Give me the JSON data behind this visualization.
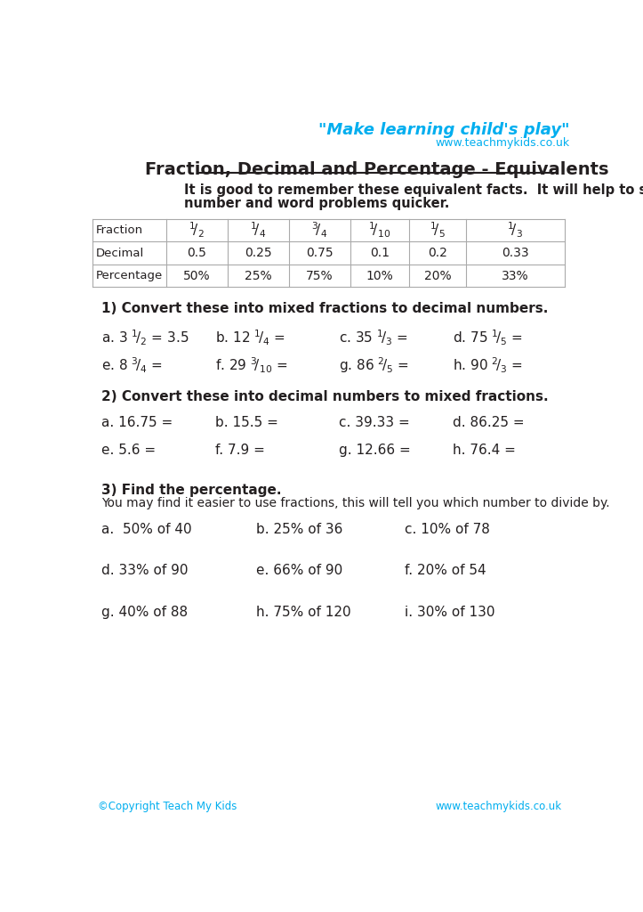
{
  "page_bg": "#ffffff",
  "title": "Fraction, Decimal and Percentage - Equivalents",
  "tagline": "\"Make learning child's play\"",
  "website": "www.teachmykids.co.uk",
  "intro_line1": "It is good to remember these equivalent facts.  It will help to solve some",
  "intro_line2": "number and word problems quicker.",
  "dec_vals": [
    "0.5",
    "0.25",
    "0.75",
    "0.1",
    "0.2",
    "0.33"
  ],
  "pct_vals": [
    "50%",
    "25%",
    "75%",
    "10%",
    "20%",
    "33%"
  ],
  "section1_title": "1) Convert these into mixed fractions to decimal numbers.",
  "section2_title": "2) Convert these into decimal numbers to mixed fractions.",
  "section3_title": "3) Find the percentage.",
  "section3_subtitle": "You may find it easier to use fractions, this will tell you which number to divide by.",
  "footer_left": "©Copyright Teach My Kids",
  "footer_right": "www.teachmykids.co.uk",
  "cyan_color": "#00aeef",
  "black_color": "#231f20",
  "table_line_color": "#aaaaaa",
  "s1r1": [
    [
      30,
      "a. 3 $^1\\!/_2$ = 3.5"
    ],
    [
      195,
      "b. 12 $^1\\!/_4$ ="
    ],
    [
      375,
      "c. 35 $^1\\!/_3$ ="
    ],
    [
      540,
      "d. 75 $^1\\!/_5$ ="
    ]
  ],
  "s1r2": [
    [
      30,
      "e. 8 $^3\\!/_4$ ="
    ],
    [
      195,
      "f. 29 $^3\\!/_{10}$ ="
    ],
    [
      375,
      "g. 86 $^2\\!/_5$ ="
    ],
    [
      540,
      "h. 90 $^2\\!/_3$ ="
    ]
  ],
  "s2r1": [
    [
      30,
      "a. 16.75 ="
    ],
    [
      195,
      "b. 15.5 ="
    ],
    [
      375,
      "c. 39.33 ="
    ],
    [
      540,
      "d. 86.25 ="
    ]
  ],
  "s2r2": [
    [
      30,
      "e. 5.6 ="
    ],
    [
      195,
      "f. 7.9 ="
    ],
    [
      375,
      "g. 12.66 ="
    ],
    [
      540,
      "h. 76.4 ="
    ]
  ],
  "s3r1": [
    [
      30,
      "a.  50% of 40"
    ],
    [
      255,
      "b. 25% of 36"
    ],
    [
      470,
      "c. 10% of 78"
    ]
  ],
  "s3r2": [
    [
      30,
      "d. 33% of 90"
    ],
    [
      255,
      "e. 66% of 90"
    ],
    [
      470,
      "f. 20% of 54"
    ]
  ],
  "s3r3": [
    [
      30,
      "g. 40% of 88"
    ],
    [
      255,
      "h. 75% of 120"
    ],
    [
      470,
      "i. 30% of 130"
    ]
  ]
}
